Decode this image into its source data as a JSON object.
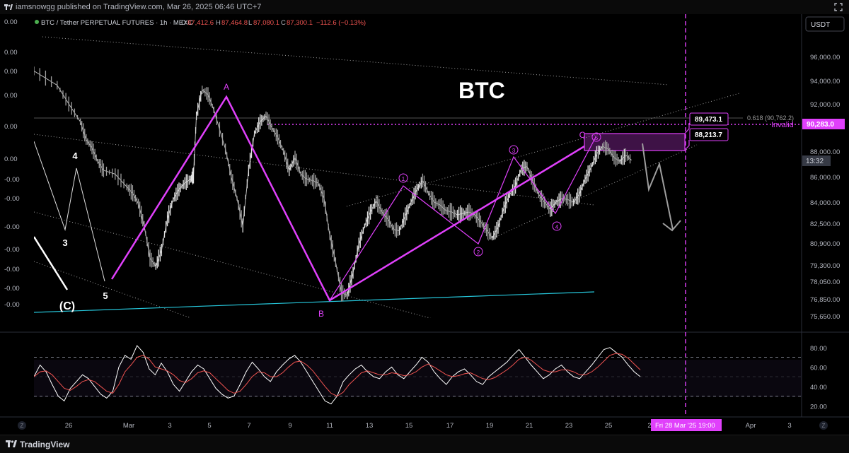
{
  "header": {
    "publisher": "iamsnowgg published on TradingView.com, Mar 26, 2025 06:46 UTC+7"
  },
  "legend": {
    "symbol": "BTC / Tether PERPETUAL FUTURES · 1h · MEXC",
    "o_label": "O",
    "o_value": "87,412.6",
    "h_label": "H",
    "h_value": "87,464.8",
    "l_label": "L",
    "l_value": "87,080.1",
    "c_label": "C",
    "c_value": "87,300.1",
    "change": "−112.6 (−0.13%)"
  },
  "currency_button": "USDT",
  "title_text": "BTC",
  "fib_label": "0.618 (90,762.2)",
  "invalid_label": "Invalid",
  "price_badges": {
    "upper": "89,473.1",
    "lower": "88,213.7",
    "invalid_price": "90,283.0",
    "last_price": "87,300.1",
    "countdown": "13:32"
  },
  "left_scale_labels": [
    "0.00",
    "0.00",
    "0.00",
    "0.00",
    "0.00",
    "0.00",
    "-0.00",
    "-0.00",
    "-0.00",
    "-0.00",
    "-0.00",
    "-0.00",
    "-0.00"
  ],
  "wave_labels": {
    "A": "A",
    "B": "B",
    "C": "C",
    "c_paren": "(C)",
    "w3": "3",
    "w4": "4",
    "w5": "5",
    "c1": "1",
    "c2": "2",
    "c3": "3",
    "c4": "4",
    "c5": "5"
  },
  "crosshair_time": "Fri 28 Mar '25   19:00",
  "footer": {
    "brand": "TradingView"
  },
  "colors": {
    "background": "#000000",
    "pattern": "#e040fb",
    "invalid": "#e040fb",
    "support_line": "#26c6da",
    "rsi": "#ffffff",
    "rsi_ma": "#ef5350",
    "up_candle": "#e0e0e0",
    "down_candle": "#9e9e9e",
    "green_segment": "#4caf50",
    "red_segment": "#ef5350"
  },
  "chart_data": [
    {
      "type": "line",
      "title": "BTC",
      "xlabel": "",
      "ylabel": "",
      "x_ticks": [
        "26",
        "Mar",
        "3",
        "5",
        "7",
        "9",
        "11",
        "13",
        "15",
        "17",
        "19",
        "21",
        "23",
        "25",
        "2",
        "Apr",
        "3"
      ],
      "y_ticks": [
        96000,
        94000,
        92000,
        90283,
        88000,
        86000,
        84000,
        82500,
        80900,
        79300,
        78050,
        76850,
        75650
      ],
      "ylim": [
        75500,
        97500
      ],
      "grid": false,
      "series": [
        {
          "values": [
            [
              0,
              94800
            ],
            [
              4,
              93600
            ],
            [
              6,
              92000
            ],
            [
              8,
              90500
            ],
            [
              9,
              89000
            ],
            [
              10,
              88300
            ],
            [
              11,
              87200
            ],
            [
              12,
              86500
            ],
            [
              14,
              86200
            ],
            [
              16,
              85200
            ],
            [
              17,
              84700
            ],
            [
              18,
              83900
            ],
            [
              19,
              82300
            ],
            [
              20,
              79800
            ],
            [
              21,
              79200
            ],
            [
              22,
              80400
            ],
            [
              23,
              82800
            ],
            [
              24,
              84200
            ],
            [
              25,
              85000
            ],
            [
              26,
              85500
            ],
            [
              27,
              85800
            ],
            [
              27.5,
              86100
            ],
            [
              28,
              91000
            ],
            [
              29,
              93200
            ],
            [
              30,
              92800
            ],
            [
              31,
              91500
            ],
            [
              33,
              88200
            ],
            [
              34,
              86000
            ],
            [
              35,
              84300
            ],
            [
              36,
              82300
            ],
            [
              37,
              86500
            ],
            [
              38,
              89500
            ],
            [
              39,
              90500
            ],
            [
              40,
              91000
            ],
            [
              41,
              90000
            ],
            [
              42,
              89200
            ],
            [
              43,
              88000
            ],
            [
              44,
              86500
            ],
            [
              45,
              87500
            ],
            [
              46,
              86200
            ],
            [
              47,
              85800
            ],
            [
              48,
              85700
            ],
            [
              49,
              85500
            ],
            [
              50,
              84300
            ],
            [
              51,
              81500
            ],
            [
              52,
              79500
            ],
            [
              53,
              77300
            ],
            [
              54,
              77100
            ],
            [
              55,
              78700
            ],
            [
              56,
              80800
            ],
            [
              57,
              82300
            ],
            [
              58,
              83300
            ],
            [
              59,
              84100
            ],
            [
              60,
              83300
            ],
            [
              61,
              82800
            ],
            [
              62,
              82000
            ],
            [
              63,
              81900
            ],
            [
              64,
              83000
            ],
            [
              65,
              84000
            ],
            [
              66,
              85000
            ],
            [
              67,
              85700
            ],
            [
              68,
              84700
            ],
            [
              69,
              84000
            ],
            [
              70,
              83800
            ],
            [
              71,
              83400
            ],
            [
              72,
              83300
            ],
            [
              73,
              83100
            ],
            [
              74,
              83200
            ],
            [
              75,
              83300
            ],
            [
              76,
              83100
            ],
            [
              77,
              82600
            ],
            [
              78,
              82000
            ],
            [
              79,
              81300
            ],
            [
              80,
              82200
            ],
            [
              81,
              83600
            ],
            [
              82,
              84600
            ],
            [
              83,
              85300
            ],
            [
              84,
              86600
            ],
            [
              85,
              86800
            ],
            [
              86,
              85600
            ],
            [
              87,
              84600
            ],
            [
              88,
              84000
            ],
            [
              89,
              83500
            ],
            [
              90,
              84000
            ],
            [
              91,
              84300
            ],
            [
              92,
              84200
            ],
            [
              93,
              84000
            ],
            [
              94,
              84600
            ],
            [
              95,
              85800
            ],
            [
              96,
              86700
            ],
            [
              97,
              87800
            ],
            [
              98,
              88400
            ],
            [
              99,
              88200
            ],
            [
              100,
              87500
            ],
            [
              101,
              87200
            ],
            [
              102,
              87700
            ],
            [
              103,
              87300
            ]
          ]
        }
      ],
      "annotations": {
        "pattern_A": [
          25,
          91800
        ],
        "pattern_B": [
          54,
          76900
        ],
        "pattern_C": [
          96,
          88800
        ],
        "wave_1": [
          64,
          85700
        ],
        "wave_2": [
          76,
          81200
        ],
        "wave_3": [
          83,
          87200
        ],
        "wave_4": [
          89,
          82700
        ],
        "wave_5": [
          99,
          88800
        ],
        "zone": [
          88213.7,
          89473.1
        ],
        "invalid_level": 90283.0,
        "fib_0618": 90762.2
      }
    },
    {
      "type": "line",
      "title": "",
      "xlabel": "",
      "ylabel": "",
      "y_ticks": [
        80,
        60,
        40,
        20
      ],
      "ylim": [
        10,
        90
      ],
      "bands": [
        30,
        70
      ],
      "grid": false,
      "series": [
        {
          "values": [
            50,
            62,
            55,
            42,
            30,
            25,
            38,
            45,
            52,
            48,
            40,
            32,
            28,
            35,
            60,
            72,
            68,
            82,
            75,
            58,
            52,
            64,
            55,
            42,
            35,
            45,
            55,
            62,
            58,
            48,
            38,
            32,
            28,
            30,
            42,
            55,
            65,
            58,
            50,
            45,
            55,
            62,
            68,
            72,
            65,
            55,
            45,
            35,
            25,
            22,
            30,
            45,
            52,
            58,
            62,
            55,
            50,
            48,
            55,
            60,
            52,
            48,
            55,
            62,
            70,
            65,
            55,
            48,
            42,
            50,
            55,
            58,
            52,
            45,
            42,
            50,
            55,
            60,
            65,
            72,
            78,
            70,
            62,
            55,
            48,
            52,
            58,
            62,
            55,
            50,
            48,
            55,
            62,
            70,
            78,
            80,
            75,
            70,
            62,
            55,
            50
          ]
        },
        {
          "values": [
            50,
            55,
            56,
            52,
            45,
            38,
            36,
            40,
            45,
            47,
            45,
            40,
            35,
            33,
            42,
            55,
            62,
            70,
            72,
            68,
            60,
            58,
            56,
            52,
            46,
            44,
            48,
            54,
            56,
            54,
            48,
            42,
            36,
            33,
            35,
            42,
            50,
            55,
            54,
            50,
            50,
            54,
            60,
            65,
            66,
            62,
            56,
            48,
            40,
            33,
            30,
            34,
            42,
            48,
            54,
            56,
            54,
            52,
            52,
            54,
            53,
            51,
            52,
            55,
            60,
            63,
            60,
            56,
            52,
            50,
            51,
            53,
            54,
            51,
            48,
            47,
            49,
            53,
            57,
            62,
            68,
            70,
            67,
            62,
            57,
            55,
            55,
            57,
            57,
            55,
            52,
            52,
            55,
            60,
            66,
            72,
            74,
            73,
            69,
            63,
            57
          ]
        }
      ]
    }
  ]
}
